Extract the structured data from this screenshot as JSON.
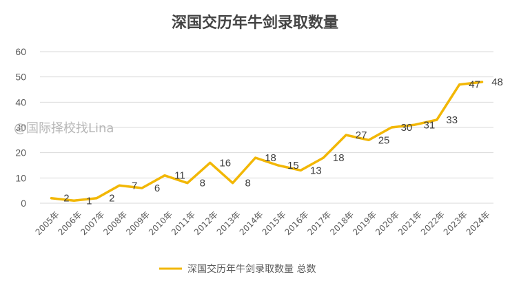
{
  "watermark": "@国际择校找Lina",
  "chart_data": {
    "type": "line",
    "title": "深国交历年牛剑录取数量",
    "xlabel": "",
    "ylabel": "",
    "categories": [
      "2005年",
      "2006年",
      "2007年",
      "2008年",
      "2009年",
      "2010年",
      "2011年",
      "2012年",
      "2013年",
      "2014年",
      "2015年",
      "2016年",
      "2017年",
      "2018年",
      "2019年",
      "2020年",
      "2021年",
      "2022年",
      "2023年",
      "2024年"
    ],
    "series": [
      {
        "name": "深国交历年牛剑录取数量 总数",
        "values": [
          2,
          1,
          2,
          7,
          6,
          11,
          8,
          16,
          8,
          18,
          15,
          13,
          18,
          27,
          25,
          30,
          31,
          33,
          47,
          48
        ],
        "data_labels": [
          "2",
          "1",
          "2",
          "7",
          "6",
          "11",
          "8",
          "16",
          "8",
          "18",
          "15",
          "13",
          "18",
          "27",
          "25",
          "30",
          "31",
          "33",
          "47",
          "48"
        ],
        "color": "#F2B705"
      }
    ],
    "ylim": [
      0,
      60
    ],
    "yticks": [
      "0",
      "10",
      "20",
      "30",
      "40",
      "50",
      "60"
    ],
    "grid": true,
    "legend": "bottom",
    "colors": {
      "line": "#F2B705",
      "grid": "#D9D9D9",
      "text": "#595959"
    }
  }
}
